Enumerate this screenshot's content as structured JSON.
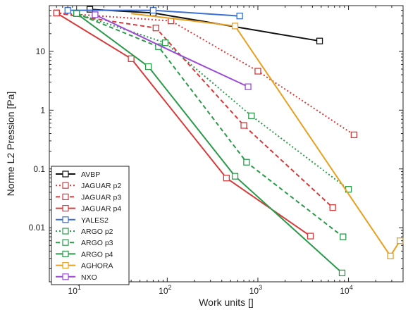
{
  "chart_data": {
    "type": "line",
    "xlabel": "Work units []",
    "ylabel": "Norme L2 Pression [Pa]",
    "xscale": "log",
    "yscale": "log",
    "xlim": [
      5,
      40000
    ],
    "ylim": [
      0.0012,
      60
    ],
    "x_ticks": [
      {
        "value": 10,
        "base": "10",
        "exp": "1"
      },
      {
        "value": 100,
        "base": "10",
        "exp": "2"
      },
      {
        "value": 1000,
        "base": "10",
        "exp": "3"
      },
      {
        "value": 10000,
        "base": "10",
        "exp": "4"
      }
    ],
    "y_ticks": [
      {
        "value": 10,
        "label": "10"
      },
      {
        "value": 1,
        "label": "1"
      },
      {
        "value": 0.1,
        "label": "0.1"
      },
      {
        "value": 0.01,
        "label": "0.01"
      }
    ],
    "grid": false,
    "legend_position": "bottom-left",
    "series": [
      {
        "name": "AVBP",
        "color": "#111111",
        "dash": "solid",
        "marker": "square",
        "points": [
          [
            14,
            52
          ],
          [
            70,
            45
          ],
          [
            4800,
            15
          ]
        ],
        "marked": [
          0,
          1,
          2
        ]
      },
      {
        "name": "JAGUAR p2",
        "color": "#d63a3a",
        "dash": "dot",
        "marker": "square",
        "points": [
          [
            6,
            45
          ],
          [
            110,
            33
          ],
          [
            1000,
            4.6
          ],
          [
            11500,
            0.38
          ]
        ],
        "marked": [
          0,
          1,
          2,
          3
        ]
      },
      {
        "name": "JAGUAR p3",
        "color": "#d63a3a",
        "dash": "dash",
        "marker": "square",
        "points": [
          [
            6,
            45
          ],
          [
            75,
            25
          ],
          [
            700,
            0.55
          ],
          [
            6700,
            0.022
          ]
        ],
        "marked": [
          0,
          1,
          2,
          3
        ]
      },
      {
        "name": "JAGUAR p4",
        "color": "#d63a3a",
        "dash": "solid",
        "marker": "square",
        "points": [
          [
            6,
            45
          ],
          [
            40,
            7.5
          ],
          [
            450,
            0.07
          ],
          [
            3800,
            0.0072
          ]
        ],
        "marked": [
          0,
          1,
          2,
          3
        ]
      },
      {
        "name": "YALES2",
        "color": "#3a6fd6",
        "dash": "solid",
        "marker": "square",
        "points": [
          [
            8,
            50
          ],
          [
            70,
            50
          ],
          [
            630,
            40
          ]
        ],
        "marked": [
          0,
          1,
          2
        ]
      },
      {
        "name": "ARGO p2",
        "color": "#2a9a4a",
        "dash": "dot",
        "marker": "square",
        "points": [
          [
            10,
            44
          ],
          [
            95,
            14
          ],
          [
            850,
            0.8
          ],
          [
            10000,
            0.045
          ]
        ],
        "marked": [
          0,
          1,
          2,
          3
        ]
      },
      {
        "name": "ARGO p3",
        "color": "#2a9a4a",
        "dash": "dash",
        "marker": "square",
        "points": [
          [
            10,
            44
          ],
          [
            80,
            12
          ],
          [
            750,
            0.13
          ],
          [
            8700,
            0.007
          ]
        ],
        "marked": [
          0,
          1,
          2,
          3
        ]
      },
      {
        "name": "ARGO p4",
        "color": "#2a9a4a",
        "dash": "solid",
        "marker": "square",
        "points": [
          [
            10,
            44
          ],
          [
            62,
            5.5
          ],
          [
            560,
            0.075
          ],
          [
            8500,
            0.0017
          ]
        ],
        "marked": [
          0,
          1,
          2,
          3
        ]
      },
      {
        "name": "AGHORA",
        "color": "#e8a020",
        "dash": "solid",
        "marker": "square",
        "points": [
          [
            40,
            44
          ],
          [
            560,
            27
          ],
          [
            29000,
            0.0033
          ],
          [
            37000,
            0.006
          ]
        ],
        "marked": [
          1,
          2,
          3
        ]
      },
      {
        "name": "NXO",
        "color": "#9b4ad6",
        "dash": "solid",
        "marker": "square",
        "points": [
          [
            16,
            42
          ],
          [
            130,
            9
          ],
          [
            780,
            2.5
          ]
        ],
        "marked": [
          0,
          2
        ]
      }
    ]
  }
}
